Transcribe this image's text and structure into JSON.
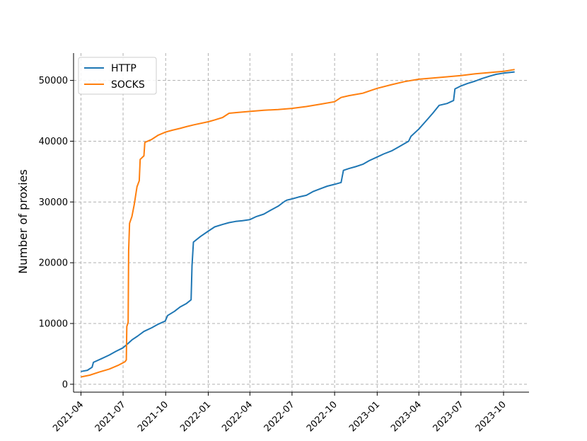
{
  "chart_data": {
    "type": "line",
    "title": "",
    "xlabel": "",
    "ylabel": "Number of proxies",
    "x_ticks": [
      "2021-04",
      "2021-07",
      "2021-10",
      "2022-01",
      "2022-04",
      "2022-07",
      "2022-10",
      "2023-01",
      "2023-04",
      "2023-07",
      "2023-10"
    ],
    "y_ticks": [
      "0",
      "10000",
      "20000",
      "30000",
      "40000",
      "50000"
    ],
    "xlim": [
      "2021-03-16",
      "2023-11-25"
    ],
    "ylim": [
      -1300,
      54500
    ],
    "grid": true,
    "legend_position": "top-left",
    "series": [
      {
        "name": "HTTP",
        "color": "#1f77b4",
        "points": [
          [
            "2021-04-01",
            2100
          ],
          [
            "2021-04-15",
            2300
          ],
          [
            "2021-04-25",
            2800
          ],
          [
            "2021-04-28",
            3600
          ],
          [
            "2021-05-15",
            4200
          ],
          [
            "2021-06-01",
            4800
          ],
          [
            "2021-06-15",
            5400
          ],
          [
            "2021-07-01",
            6000
          ],
          [
            "2021-07-10",
            6600
          ],
          [
            "2021-07-20",
            7300
          ],
          [
            "2021-08-01",
            7900
          ],
          [
            "2021-08-15",
            8700
          ],
          [
            "2021-09-01",
            9300
          ],
          [
            "2021-09-15",
            9900
          ],
          [
            "2021-09-30",
            10400
          ],
          [
            "2021-10-05",
            11300
          ],
          [
            "2021-10-20",
            12000
          ],
          [
            "2021-11-01",
            12700
          ],
          [
            "2021-11-15",
            13300
          ],
          [
            "2021-11-25",
            13900
          ],
          [
            "2021-11-27",
            19500
          ],
          [
            "2021-11-30",
            23400
          ],
          [
            "2021-12-15",
            24300
          ],
          [
            "2022-01-01",
            25200
          ],
          [
            "2022-01-15",
            25900
          ],
          [
            "2022-02-01",
            26300
          ],
          [
            "2022-02-15",
            26600
          ],
          [
            "2022-03-01",
            26800
          ],
          [
            "2022-03-15",
            26900
          ],
          [
            "2022-04-01",
            27100
          ],
          [
            "2022-04-15",
            27600
          ],
          [
            "2022-05-01",
            28000
          ],
          [
            "2022-05-15",
            28600
          ],
          [
            "2022-06-01",
            29300
          ],
          [
            "2022-06-15",
            30100
          ],
          [
            "2022-06-20",
            30300
          ],
          [
            "2022-07-01",
            30500
          ],
          [
            "2022-07-15",
            30800
          ],
          [
            "2022-08-01",
            31100
          ],
          [
            "2022-08-15",
            31700
          ],
          [
            "2022-09-01",
            32200
          ],
          [
            "2022-09-15",
            32600
          ],
          [
            "2022-10-01",
            32900
          ],
          [
            "2022-10-15",
            33200
          ],
          [
            "2022-10-20",
            35200
          ],
          [
            "2022-11-01",
            35500
          ],
          [
            "2022-11-15",
            35800
          ],
          [
            "2022-12-01",
            36200
          ],
          [
            "2022-12-15",
            36800
          ],
          [
            "2023-01-01",
            37400
          ],
          [
            "2023-01-15",
            37900
          ],
          [
            "2023-02-01",
            38400
          ],
          [
            "2023-02-15",
            39000
          ],
          [
            "2023-03-01",
            39600
          ],
          [
            "2023-03-10",
            40000
          ],
          [
            "2023-03-15",
            40800
          ],
          [
            "2023-04-01",
            42000
          ],
          [
            "2023-04-15",
            43200
          ],
          [
            "2023-05-01",
            44600
          ],
          [
            "2023-05-15",
            45900
          ],
          [
            "2023-06-01",
            46200
          ],
          [
            "2023-06-15",
            46700
          ],
          [
            "2023-06-18",
            48600
          ],
          [
            "2023-07-01",
            49100
          ],
          [
            "2023-07-15",
            49500
          ],
          [
            "2023-08-01",
            49900
          ],
          [
            "2023-08-15",
            50300
          ],
          [
            "2023-09-01",
            50700
          ],
          [
            "2023-09-15",
            51000
          ],
          [
            "2023-10-01",
            51200
          ],
          [
            "2023-10-25",
            51400
          ]
        ]
      },
      {
        "name": "SOCKS",
        "color": "#ff7f0e",
        "points": [
          [
            "2021-04-01",
            1200
          ],
          [
            "2021-04-20",
            1500
          ],
          [
            "2021-05-10",
            2000
          ],
          [
            "2021-06-01",
            2500
          ],
          [
            "2021-06-20",
            3100
          ],
          [
            "2021-07-05",
            3700
          ],
          [
            "2021-07-08",
            4000
          ],
          [
            "2021-07-09",
            9500
          ],
          [
            "2021-07-12",
            10200
          ],
          [
            "2021-07-13",
            22000
          ],
          [
            "2021-07-15",
            26500
          ],
          [
            "2021-07-20",
            27600
          ],
          [
            "2021-07-25",
            29500
          ],
          [
            "2021-07-31",
            32500
          ],
          [
            "2021-08-05",
            33500
          ],
          [
            "2021-08-07",
            37000
          ],
          [
            "2021-08-15",
            37600
          ],
          [
            "2021-08-17",
            39800
          ],
          [
            "2021-09-01",
            40300
          ],
          [
            "2021-09-15",
            41000
          ],
          [
            "2021-10-01",
            41500
          ],
          [
            "2021-10-15",
            41800
          ],
          [
            "2021-11-01",
            42100
          ],
          [
            "2021-11-15",
            42400
          ],
          [
            "2021-12-01",
            42700
          ],
          [
            "2022-01-01",
            43200
          ],
          [
            "2022-01-15",
            43500
          ],
          [
            "2022-02-01",
            43900
          ],
          [
            "2022-02-15",
            44600
          ],
          [
            "2022-03-01",
            44700
          ],
          [
            "2022-04-01",
            44900
          ],
          [
            "2022-05-01",
            45100
          ],
          [
            "2022-06-01",
            45200
          ],
          [
            "2022-07-01",
            45400
          ],
          [
            "2022-08-01",
            45700
          ],
          [
            "2022-09-01",
            46100
          ],
          [
            "2022-10-01",
            46500
          ],
          [
            "2022-10-15",
            47200
          ],
          [
            "2022-11-01",
            47500
          ],
          [
            "2022-12-01",
            47900
          ],
          [
            "2022-12-20",
            48400
          ],
          [
            "2023-01-01",
            48700
          ],
          [
            "2023-02-01",
            49300
          ],
          [
            "2023-03-01",
            49800
          ],
          [
            "2023-04-01",
            50200
          ],
          [
            "2023-05-01",
            50400
          ],
          [
            "2023-06-01",
            50600
          ],
          [
            "2023-07-01",
            50800
          ],
          [
            "2023-08-01",
            51100
          ],
          [
            "2023-09-01",
            51300
          ],
          [
            "2023-10-01",
            51500
          ],
          [
            "2023-10-25",
            51800
          ]
        ]
      }
    ]
  }
}
